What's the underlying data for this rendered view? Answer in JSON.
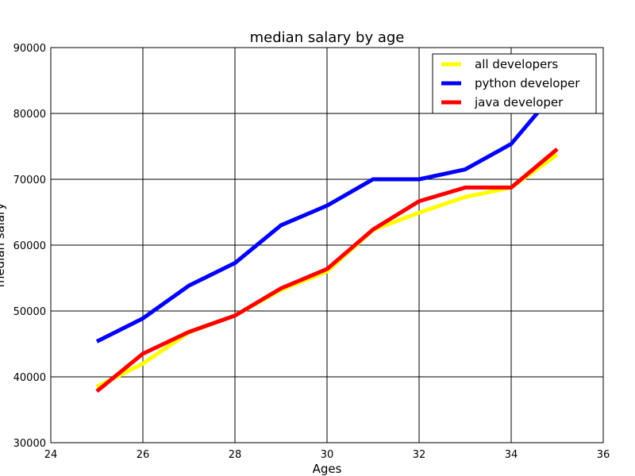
{
  "chart_data": {
    "type": "line",
    "title": "median salary by age",
    "xlabel": "Ages",
    "ylabel": "median salary",
    "xlim": [
      24,
      36
    ],
    "ylim": [
      30000,
      90000
    ],
    "xticks": [
      "24",
      "26",
      "28",
      "30",
      "32",
      "34",
      "36"
    ],
    "yticks": [
      "30000",
      "40000",
      "50000",
      "60000",
      "70000",
      "80000",
      "90000"
    ],
    "grid": true,
    "legend_position": "top-right",
    "x": [
      25,
      26,
      27,
      28,
      29,
      30,
      31,
      32,
      33,
      34,
      35
    ],
    "series": [
      {
        "name": "all developers",
        "color": "#ffff00",
        "values": [
          38496,
          42000,
          46752,
          49320,
          53200,
          56000,
          62316,
          64928,
          67317,
          68748,
          73752
        ]
      },
      {
        "name": "python developer",
        "color": "#0000ff",
        "values": [
          45372,
          48876,
          53850,
          57287,
          63016,
          65998,
          70003,
          70000,
          71496,
          75370,
          83640
        ]
      },
      {
        "name": "java developer",
        "color": "#ff0000",
        "values": [
          37810,
          43515,
          46823,
          49293,
          53437,
          56373,
          62375,
          66674,
          68745,
          68746,
          74583
        ]
      }
    ]
  }
}
